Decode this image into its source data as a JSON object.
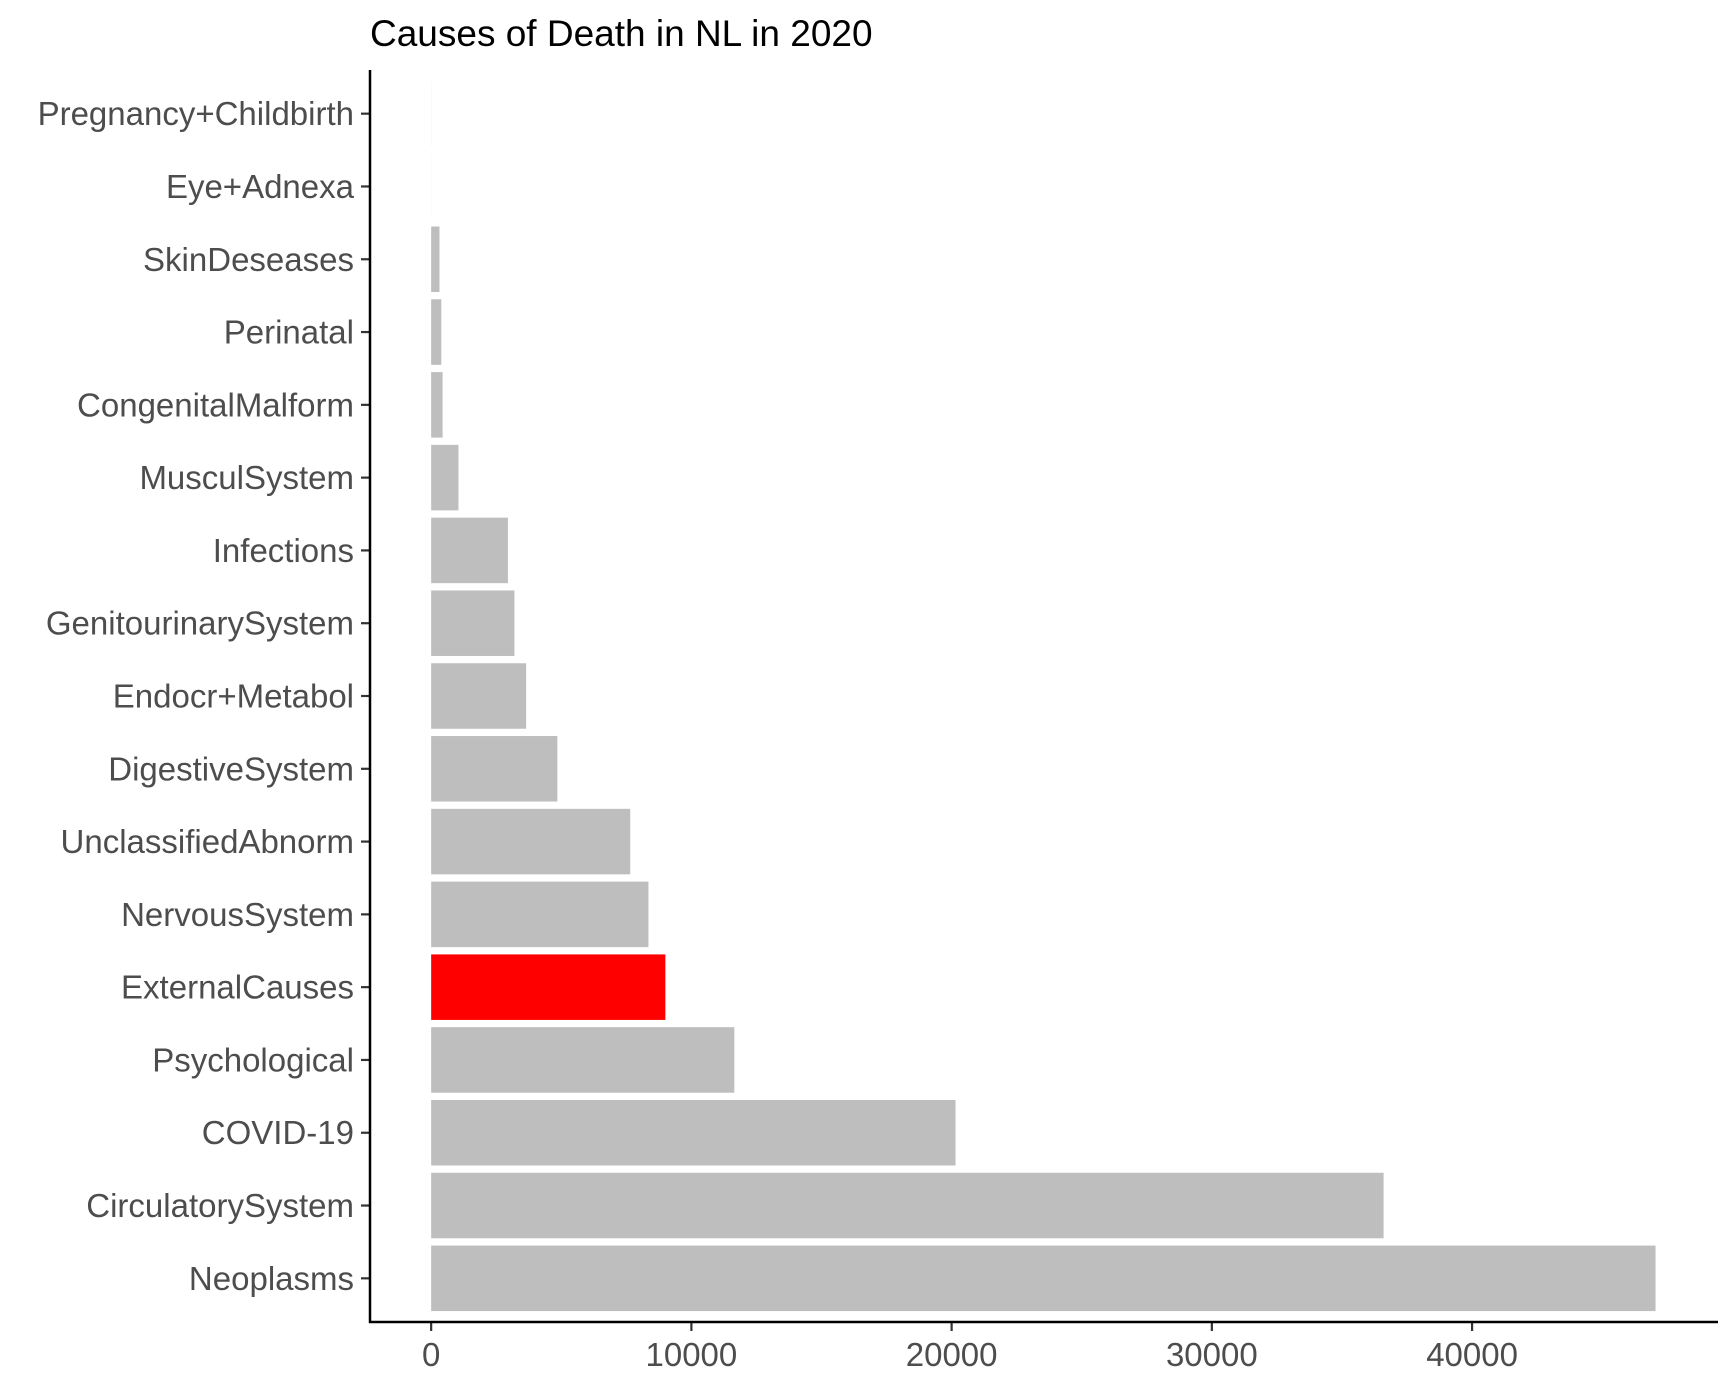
{
  "chart_data": {
    "type": "bar",
    "orientation": "horizontal",
    "title": "Causes of Death in NL in 2020",
    "xlabel": "",
    "ylabel": "",
    "categories": [
      "Pregnancy+Childbirth",
      "Eye+Adnexa",
      "SkinDeseases",
      "Perinatal",
      "CongenitalMalform",
      "MusculSystem",
      "Infections",
      "GenitourinarySystem",
      "Endocr+Metabol",
      "DigestiveSystem",
      "UnclassifiedAbnorm",
      "NervousSystem",
      "ExternalCauses",
      "Psychological",
      "COVID-19",
      "CirculatorySystem",
      "Neoplasms"
    ],
    "values": [
      3,
      2,
      320,
      390,
      440,
      1050,
      2950,
      3200,
      3650,
      4850,
      7650,
      8350,
      9000,
      11650,
      20150,
      36600,
      47050
    ],
    "highlight": "ExternalCauses",
    "colors": {
      "default": "#bebebe",
      "highlight": "#ff0000"
    },
    "xlim": [
      -2350,
      49450
    ],
    "xticks": [
      0,
      10000,
      20000,
      30000,
      40000
    ],
    "grid": false,
    "legend": "none"
  }
}
